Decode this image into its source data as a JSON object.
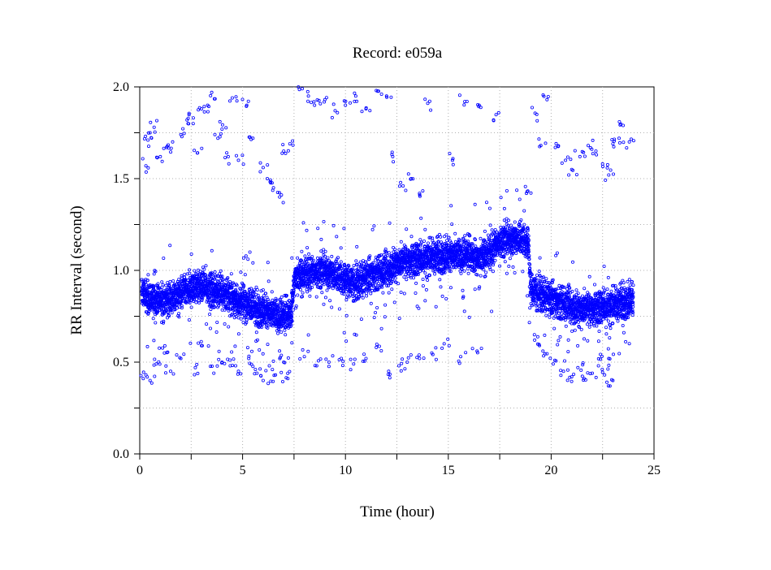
{
  "chart_data": {
    "type": "scatter",
    "title": "Record:  e059a",
    "xlabel": "Time (hour)",
    "ylabel": "RR Interval (second)",
    "xlim": [
      0,
      25
    ],
    "ylim": [
      0,
      2
    ],
    "x_ticks": [
      0,
      5,
      10,
      15,
      20,
      25
    ],
    "x_tick_labels": [
      "0",
      "5",
      "10",
      "15",
      "20",
      "25"
    ],
    "y_ticks": [
      0,
      0.5,
      1,
      1.5,
      2
    ],
    "y_tick_labels": [
      "0.0",
      "0.5",
      "1.0",
      "1.5",
      "2.0"
    ],
    "grid": true,
    "marker": "open-circle",
    "series": [
      {
        "color": "#0000ff",
        "baseline": [
          [
            0.1,
            0.88
          ],
          [
            0.5,
            0.84
          ],
          [
            1.0,
            0.83
          ],
          [
            1.5,
            0.85
          ],
          [
            2.0,
            0.87
          ],
          [
            2.5,
            0.9
          ],
          [
            3.0,
            0.92
          ],
          [
            3.5,
            0.9
          ],
          [
            4.0,
            0.88
          ],
          [
            4.5,
            0.85
          ],
          [
            5.0,
            0.82
          ],
          [
            5.5,
            0.8
          ],
          [
            6.0,
            0.78
          ],
          [
            6.5,
            0.76
          ],
          [
            7.0,
            0.75
          ],
          [
            7.4,
            0.78
          ],
          [
            7.5,
            0.95
          ],
          [
            8.0,
            0.98
          ],
          [
            8.5,
            0.99
          ],
          [
            9.0,
            1.0
          ],
          [
            9.5,
            0.98
          ],
          [
            10.0,
            0.95
          ],
          [
            10.5,
            0.93
          ],
          [
            11.0,
            0.96
          ],
          [
            11.5,
            0.98
          ],
          [
            12.0,
            1.0
          ],
          [
            12.5,
            1.04
          ],
          [
            13.0,
            1.05
          ],
          [
            13.5,
            1.06
          ],
          [
            14.0,
            1.07
          ],
          [
            14.5,
            1.08
          ],
          [
            15.0,
            1.08
          ],
          [
            15.5,
            1.08
          ],
          [
            16.0,
            1.09
          ],
          [
            16.5,
            1.06
          ],
          [
            17.0,
            1.1
          ],
          [
            17.5,
            1.16
          ],
          [
            18.0,
            1.17
          ],
          [
            18.5,
            1.18
          ],
          [
            18.9,
            1.15
          ],
          [
            19.0,
            0.9
          ],
          [
            19.5,
            0.87
          ],
          [
            20.0,
            0.84
          ],
          [
            20.5,
            0.82
          ],
          [
            21.0,
            0.8
          ],
          [
            21.5,
            0.79
          ],
          [
            22.0,
            0.79
          ],
          [
            22.5,
            0.8
          ],
          [
            23.0,
            0.81
          ],
          [
            23.5,
            0.83
          ],
          [
            24.0,
            0.84
          ]
        ],
        "ectopic_high": [
          [
            0.3,
            1.57
          ],
          [
            0.4,
            1.71
          ],
          [
            0.5,
            1.75
          ],
          [
            0.7,
            1.78
          ],
          [
            1.0,
            1.62
          ],
          [
            1.3,
            1.67
          ],
          [
            1.6,
            1.7
          ],
          [
            2.0,
            1.74
          ],
          [
            2.3,
            1.82
          ],
          [
            2.6,
            1.8
          ],
          [
            2.8,
            1.64
          ],
          [
            3.0,
            1.88
          ],
          [
            3.3,
            1.9
          ],
          [
            3.5,
            1.97
          ],
          [
            3.8,
            1.72
          ],
          [
            4.0,
            1.77
          ],
          [
            4.3,
            1.62
          ],
          [
            4.5,
            1.94
          ],
          [
            4.8,
            1.6
          ],
          [
            5.2,
            1.9
          ],
          [
            5.5,
            1.72
          ],
          [
            6.0,
            1.56
          ],
          [
            6.2,
            1.5
          ],
          [
            6.5,
            1.45
          ],
          [
            6.8,
            1.4
          ],
          [
            7.0,
            1.65
          ],
          [
            7.3,
            1.69
          ],
          [
            7.9,
            1.99
          ],
          [
            8.2,
            1.95
          ],
          [
            8.5,
            1.9
          ],
          [
            9.0,
            1.93
          ],
          [
            9.5,
            1.87
          ],
          [
            10.0,
            1.9
          ],
          [
            10.5,
            1.95
          ],
          [
            11.0,
            1.88
          ],
          [
            11.5,
            1.98
          ],
          [
            12.0,
            1.95
          ],
          [
            12.3,
            1.62
          ],
          [
            12.8,
            1.46
          ],
          [
            13.2,
            1.5
          ],
          [
            13.6,
            1.42
          ],
          [
            14.0,
            1.91
          ],
          [
            15.2,
            1.6
          ],
          [
            15.8,
            1.92
          ],
          [
            16.5,
            1.9
          ],
          [
            17.2,
            1.82
          ],
          [
            18.8,
            1.42
          ],
          [
            19.3,
            1.85
          ],
          [
            19.8,
            1.93
          ],
          [
            19.5,
            1.68
          ],
          [
            20.2,
            1.67
          ],
          [
            20.7,
            1.6
          ],
          [
            21.0,
            1.55
          ],
          [
            21.4,
            1.62
          ],
          [
            21.8,
            1.68
          ],
          [
            22.2,
            1.63
          ],
          [
            22.5,
            1.58
          ],
          [
            22.8,
            1.52
          ],
          [
            23.0,
            1.69
          ],
          [
            23.3,
            1.72
          ],
          [
            23.5,
            1.79
          ],
          [
            23.8,
            1.7
          ]
        ],
        "ectopic_low": [
          [
            0.3,
            0.43
          ],
          [
            0.5,
            0.4
          ],
          [
            0.8,
            0.49
          ],
          [
            1.2,
            0.55
          ],
          [
            1.5,
            0.45
          ],
          [
            2.0,
            0.52
          ],
          [
            2.7,
            0.47
          ],
          [
            3.0,
            0.59
          ],
          [
            3.6,
            0.44
          ],
          [
            4.0,
            0.5
          ],
          [
            4.4,
            0.48
          ],
          [
            4.8,
            0.45
          ],
          [
            5.3,
            0.52
          ],
          [
            5.7,
            0.44
          ],
          [
            6.0,
            0.4
          ],
          [
            6.3,
            0.48
          ],
          [
            6.6,
            0.43
          ],
          [
            7.0,
            0.5
          ],
          [
            7.2,
            0.41
          ],
          [
            8.0,
            0.53
          ],
          [
            8.6,
            0.48
          ],
          [
            9.2,
            0.5
          ],
          [
            9.8,
            0.52
          ],
          [
            10.4,
            0.49
          ],
          [
            11.0,
            0.52
          ],
          [
            11.5,
            0.58
          ],
          [
            12.1,
            0.45
          ],
          [
            12.6,
            0.48
          ],
          [
            13.0,
            0.5
          ],
          [
            13.6,
            0.52
          ],
          [
            14.2,
            0.55
          ],
          [
            14.8,
            0.6
          ],
          [
            15.6,
            0.53
          ],
          [
            16.4,
            0.56
          ],
          [
            19.2,
            0.62
          ],
          [
            19.6,
            0.56
          ],
          [
            20.1,
            0.49
          ],
          [
            20.6,
            0.45
          ],
          [
            21.0,
            0.42
          ],
          [
            21.3,
            0.47
          ],
          [
            21.6,
            0.41
          ],
          [
            22.0,
            0.44
          ],
          [
            22.3,
            0.48
          ],
          [
            22.6,
            0.43
          ],
          [
            23.0,
            0.4
          ],
          [
            22.8,
            0.52
          ]
        ]
      }
    ]
  }
}
